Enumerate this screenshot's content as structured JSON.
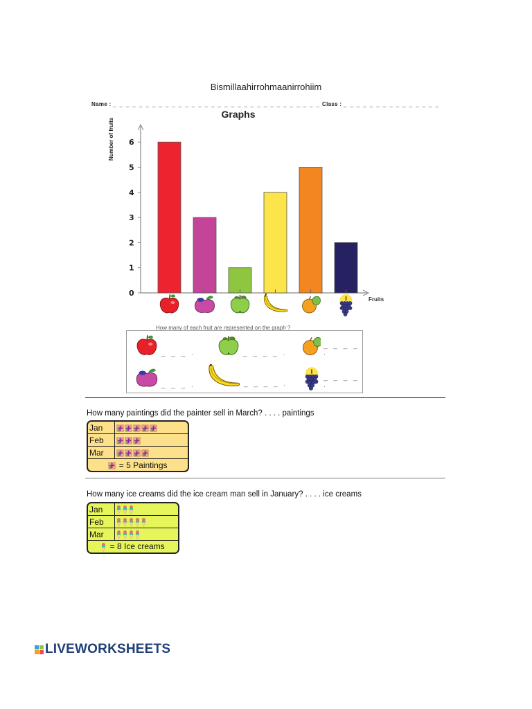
{
  "header": {
    "title": "Bismillaahirrohmaanirrohiim",
    "name_label": "Name :",
    "name_dashes": "_ _ _ _ _ _ _ _ _ _ _ _ _ _ _ _ _ _ _ _ _ _ _ _ _ _ _ _ _ _ _ _",
    "class_label": "Class :",
    "class_dashes": "_ _ _ _ _ _ _ _ _ _ _ _ _ _ _"
  },
  "chart_data": [
    {
      "type": "bar",
      "title": "Graphs",
      "xlabel": "Fruits",
      "ylabel": "Number of fruits",
      "categories": [
        "apple",
        "plum",
        "green apple",
        "banana",
        "orange",
        "grapes"
      ],
      "values": [
        6,
        3,
        1,
        4,
        5,
        2
      ],
      "colors": [
        "#ee2330",
        "#c4449a",
        "#8fc63f",
        "#fbe54b",
        "#f38621",
        "#262262"
      ],
      "yticks": [
        0,
        1,
        2,
        3,
        4,
        5,
        6
      ],
      "ylim": [
        0,
        6.5
      ],
      "grid": false,
      "legend": "none"
    },
    {
      "type": "table",
      "title": "Paintings sold (pictograph)",
      "categories": [
        "Jan",
        "Feb",
        "Mar"
      ],
      "values": [
        5,
        3,
        4
      ],
      "key": "= 5 Paintings",
      "unit_value": 5
    },
    {
      "type": "table",
      "title": "Ice creams sold (pictograph)",
      "categories": [
        "Jan",
        "Feb",
        "Mar"
      ],
      "values": [
        3,
        5,
        4
      ],
      "key": "= 8 Ice creams",
      "unit_value": 8
    }
  ],
  "fruit_question": {
    "prompt": "How many of each fruit are represented on the graph ?",
    "items": [
      {
        "fruit": "apple",
        "answer_blank": "_ _ _ ."
      },
      {
        "fruit": "green apple",
        "answer_blank": "_ _ _ _ ."
      },
      {
        "fruit": "orange",
        "answer_blank": "_ _ _ _ ."
      },
      {
        "fruit": "plum",
        "answer_blank": "_ _ _ ."
      },
      {
        "fruit": "banana",
        "answer_blank": "_ _ _ _ ."
      },
      {
        "fruit": "grapes",
        "answer_blank": "_ _ _ _ ."
      }
    ]
  },
  "paintings": {
    "question": "How many paintings did the painter sell in March?  . . . .  paintings",
    "rows": [
      {
        "month": "Jan",
        "count": 5
      },
      {
        "month": "Feb",
        "count": 3
      },
      {
        "month": "Mar",
        "count": 4
      }
    ],
    "key": "= 5 Paintings",
    "bg": "#fde08a"
  },
  "icecreams": {
    "question": "How many ice creams did the ice cream man sell in January?  . . . .  ice creams",
    "rows": [
      {
        "month": "Jan",
        "count": 3
      },
      {
        "month": "Feb",
        "count": 5
      },
      {
        "month": "Mar",
        "count": 4
      }
    ],
    "key": "= 8 Ice creams",
    "bg": "#e6f55a"
  },
  "footer": {
    "logo_text": "LIVEWORKSHEETS"
  }
}
